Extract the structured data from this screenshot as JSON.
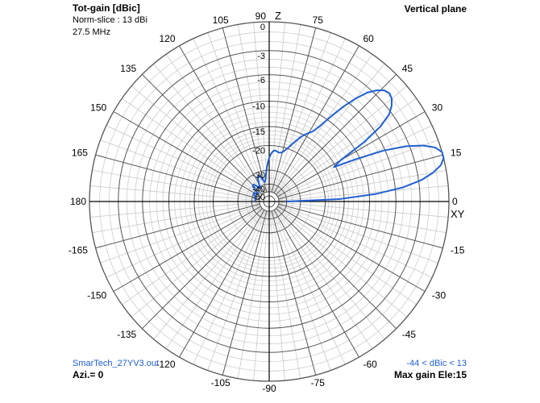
{
  "header": {
    "title": "Tot-gain [dBic]",
    "norm_slice": "Norm-slice : 13 dBi",
    "frequency": "27.5 MHz",
    "plane": "Vertical plane"
  },
  "footer": {
    "file": "SmarTech_27YV3.out",
    "range": "-44 < dBic < 13",
    "azimuth": "Azi.= 0",
    "max_gain": "Max gain Ele:15"
  },
  "colors": {
    "pattern": "#1f5fd1",
    "grid": "#c8c8c8",
    "axis": "#000000",
    "footer_text": "#1f5fd1"
  },
  "chart_data": {
    "type": "polar",
    "title": "Tot-gain [dBic]",
    "plane": "Vertical plane",
    "axis_labels": {
      "up": "Z",
      "right": "XY"
    },
    "angle_labels": [
      "90",
      "75",
      "60",
      "45",
      "30",
      "15",
      "0",
      "-15",
      "-30",
      "-45",
      "-60",
      "-75",
      "-90",
      "-105",
      "-120",
      "-135",
      "-150",
      "-165",
      "180",
      "165",
      "150",
      "135",
      "120",
      "105"
    ],
    "angle_values": [
      90,
      75,
      60,
      45,
      30,
      15,
      0,
      -15,
      -30,
      -45,
      -60,
      -75,
      -90,
      -105,
      -120,
      -135,
      -150,
      -165,
      180,
      165,
      150,
      135,
      120,
      105
    ],
    "radial_ticks": [
      "0",
      "-3",
      "-6",
      "-10",
      "-15",
      "-20",
      "-30",
      "-40",
      "-50"
    ],
    "gain_range_dbic": [
      -44,
      13
    ],
    "max_gain_elevation_deg": 15,
    "series": [
      {
        "name": "Tot-gain",
        "elevation_deg": [
          0,
          2,
          4,
          6,
          8,
          10,
          12,
          14,
          15,
          16,
          18,
          20,
          22,
          24,
          26,
          28,
          30,
          32,
          34,
          36,
          38,
          40,
          42,
          44,
          46,
          48,
          50,
          52,
          54,
          56,
          58,
          60,
          62,
          64,
          66,
          68,
          70,
          72,
          74,
          76,
          78,
          80,
          82,
          84,
          86,
          88,
          90,
          92,
          94,
          96,
          98,
          100,
          102,
          104,
          106,
          108,
          110,
          112,
          114,
          116,
          118,
          120,
          122,
          124,
          126,
          128,
          130,
          132,
          134,
          136,
          138,
          140,
          142,
          144,
          146,
          148,
          150,
          152,
          154,
          156,
          158,
          160,
          162,
          164,
          166,
          168,
          170,
          172,
          174,
          176,
          178,
          180
        ],
        "gain_db": [
          -40,
          -16,
          -9,
          -5,
          -2.7,
          -1.3,
          -0.4,
          0,
          0,
          0,
          -0.5,
          -1.6,
          -3.4,
          -6.2,
          -10.6,
          -15.4,
          -13.4,
          -8.2,
          -5,
          -3.3,
          -2.5,
          -2,
          -1.8,
          -2,
          -2.6,
          -3.5,
          -5,
          -6.9,
          -9.2,
          -11.6,
          -13.3,
          -14.1,
          -14.8,
          -15.8,
          -17,
          -18.2,
          -19.4,
          -20.4,
          -21.3,
          -21.8,
          -22,
          -21.9,
          -21.6,
          -21.5,
          -21.9,
          -22.9,
          -24.3,
          -26.3,
          -28.6,
          -31.3,
          -34,
          -36.3,
          -37.6,
          -37.4,
          -36,
          -34.1,
          -32.6,
          -32,
          -32.2,
          -33.3,
          -35.1,
          -37.4,
          -39.9,
          -41.8,
          -41.2,
          -38.8,
          -36.8,
          -35.6,
          -35.1,
          -35.5,
          -36.6,
          -38.5,
          -41.1,
          -43.7,
          -44,
          -42.8,
          -41.2,
          -40.1,
          -39.9,
          -40.5,
          -41.8,
          -43.2,
          -44,
          -43.8,
          -43.2,
          -43,
          -43.4,
          -44,
          -44,
          -43.9,
          -43.8,
          -44
        ]
      }
    ]
  }
}
